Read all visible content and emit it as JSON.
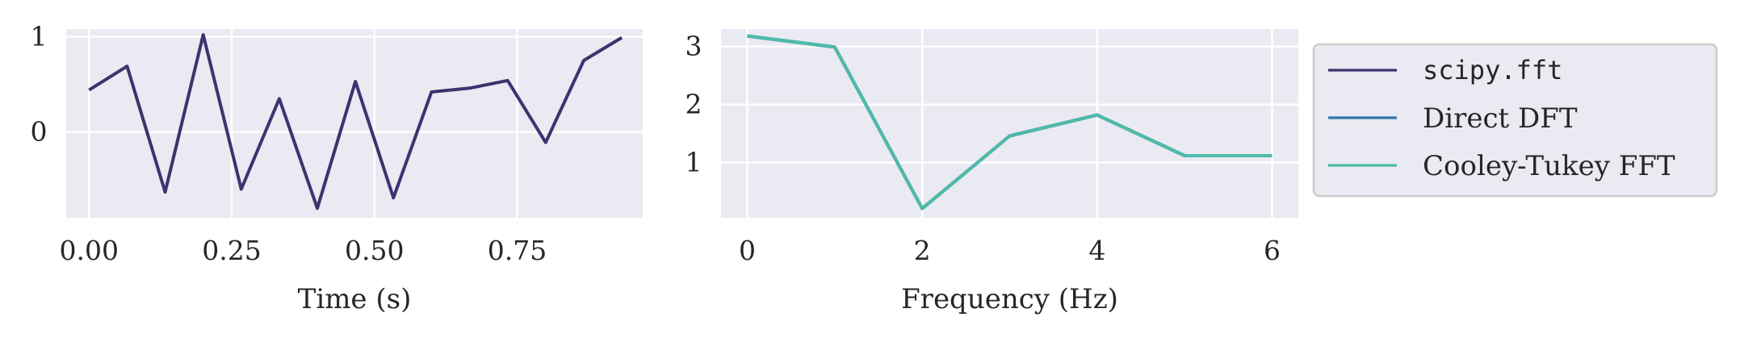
{
  "chart_data": [
    {
      "type": "line",
      "xlabel": "Time (s)",
      "ylabel": "",
      "xlim": [
        -0.04,
        0.97
      ],
      "ylim": [
        -0.9,
        1.08
      ],
      "xticks": [
        0.0,
        0.25,
        0.5,
        0.75
      ],
      "xtick_labels": [
        "0.00",
        "0.25",
        "0.50",
        "0.75"
      ],
      "yticks": [
        0,
        1
      ],
      "ytick_labels": [
        "0",
        "1"
      ],
      "grid": true,
      "series": [
        {
          "color": "#3b3470",
          "x": [
            0.0,
            0.0667,
            0.1333,
            0.2,
            0.2667,
            0.3333,
            0.4,
            0.4667,
            0.5333,
            0.6,
            0.6667,
            0.7333,
            0.8,
            0.8667,
            0.9333
          ],
          "y": [
            0.44,
            0.69,
            -0.63,
            1.02,
            -0.6,
            0.35,
            -0.8,
            0.53,
            -0.69,
            0.42,
            0.46,
            0.54,
            -0.11,
            0.75,
            0.99
          ]
        }
      ]
    },
    {
      "type": "line",
      "xlabel": "Frequency (Hz)",
      "ylabel": "",
      "xlim": [
        -0.3,
        6.3
      ],
      "ylim": [
        0.05,
        3.3
      ],
      "xticks": [
        0,
        2,
        4,
        6
      ],
      "xtick_labels": [
        "0",
        "2",
        "4",
        "6"
      ],
      "yticks": [
        1,
        2,
        3
      ],
      "ytick_labels": [
        "1",
        "2",
        "3"
      ],
      "grid": true,
      "legend_position": "right",
      "series": [
        {
          "name": "scipy.fft",
          "color": "#3b3470",
          "x": [
            0,
            1,
            2,
            3,
            4,
            5,
            6
          ],
          "y": [
            3.18,
            2.99,
            0.21,
            1.46,
            1.82,
            1.12,
            1.12
          ]
        },
        {
          "name": "Direct DFT",
          "color": "#3276a8",
          "x": [
            0,
            1,
            2,
            3,
            4,
            5,
            6
          ],
          "y": [
            3.18,
            2.99,
            0.21,
            1.46,
            1.82,
            1.12,
            1.12
          ]
        },
        {
          "name": "Cooley-Tukey FFT",
          "color": "#4dbbaa",
          "x": [
            0,
            1,
            2,
            3,
            4,
            5,
            6
          ],
          "y": [
            3.18,
            2.99,
            0.21,
            1.46,
            1.82,
            1.12,
            1.12
          ]
        }
      ]
    }
  ]
}
